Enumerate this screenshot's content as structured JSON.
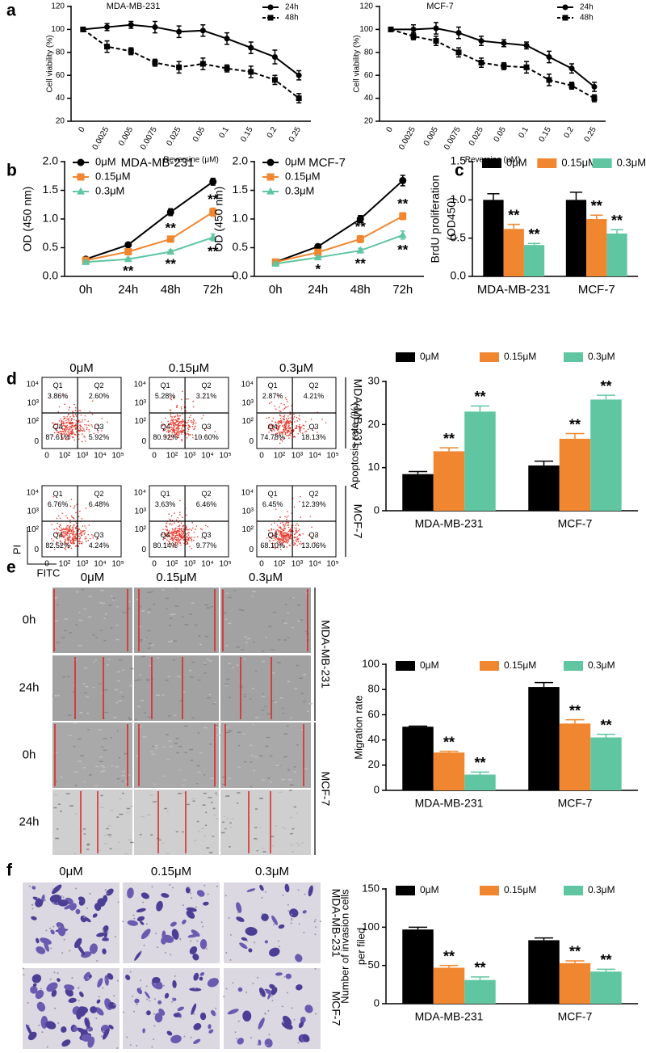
{
  "chart_data": [
    {
      "type": "line",
      "title": "MDA-MB-231",
      "x_label": "Reversine (μM)",
      "y_label": "Cell viability (%)",
      "categories": [
        "0",
        "0.0025",
        "0.005",
        "0.0075",
        "0.025",
        "0.05",
        "0.1",
        "0.15",
        "0.2",
        "0.25"
      ],
      "ylim": [
        20,
        120
      ],
      "yticks": [
        20,
        40,
        60,
        80,
        100,
        120
      ],
      "legend": "upper right",
      "series": [
        {
          "name": "24h",
          "color": "#000000",
          "line_style": "solid",
          "marker": "circle",
          "values": [
            100,
            102,
            104,
            102,
            98,
            99,
            92,
            84,
            76,
            60
          ],
          "errors": [
            0,
            3,
            3,
            5,
            5,
            5,
            5,
            5,
            6,
            4
          ]
        },
        {
          "name": "48h",
          "color": "#000000",
          "line_style": "dashed",
          "marker": "square",
          "values": [
            100,
            85,
            81,
            71,
            67,
            70,
            66,
            63,
            56,
            40
          ],
          "errors": [
            0,
            5,
            3,
            3,
            5,
            5,
            3,
            5,
            4,
            4
          ]
        }
      ]
    },
    {
      "type": "line",
      "title": "MCF-7",
      "x_label": "Reversine (μM)",
      "y_label": "Cell viability (%)",
      "categories": [
        "0",
        "0.0025",
        "0.005",
        "0.0075",
        "0.025",
        "0.05",
        "0.1",
        "0.15",
        "0.2",
        "0.25"
      ],
      "ylim": [
        20,
        120
      ],
      "yticks": [
        20,
        40,
        60,
        80,
        100,
        120
      ],
      "legend": "upper right",
      "series": [
        {
          "name": "24h",
          "color": "#000000",
          "line_style": "solid",
          "marker": "circle",
          "values": [
            100,
            100,
            101,
            97,
            90,
            88,
            86,
            76,
            66,
            50
          ],
          "errors": [
            0,
            4,
            5,
            5,
            4,
            3,
            3,
            5,
            4,
            4
          ]
        },
        {
          "name": "48h",
          "color": "#000000",
          "line_style": "dashed",
          "marker": "square",
          "values": [
            100,
            94,
            90,
            80,
            71,
            68,
            67,
            56,
            51,
            40
          ],
          "errors": [
            0,
            3,
            4,
            4,
            4,
            3,
            5,
            5,
            3,
            3
          ]
        }
      ]
    },
    {
      "type": "line",
      "title": "MDA-MB-231",
      "y_label": "OD (450 nm)",
      "categories": [
        "0h",
        "24h",
        "48h",
        "72h"
      ],
      "ylim": [
        0,
        2
      ],
      "yticks": [
        {
          "value": 0,
          "label": "0.0"
        },
        0.5,
        {
          "value": 1,
          "label": "1.0"
        },
        1.5,
        {
          "value": 2,
          "label": "2.0"
        }
      ],
      "legend": "upper left",
      "series": [
        {
          "name": "0μM",
          "color": "#000000",
          "line_style": "solid",
          "marker": "circle",
          "values": [
            0.3,
            0.55,
            1.12,
            1.65
          ],
          "errors": [
            0.02,
            0.03,
            0.06,
            0.06
          ]
        },
        {
          "name": "0.15μM",
          "color": "#f0862f",
          "line_style": "solid",
          "marker": "square",
          "values": [
            0.28,
            0.43,
            0.65,
            1.12
          ],
          "errors": [
            0.02,
            0.03,
            0.04,
            0.07
          ],
          "significance": [
            null,
            null,
            "**",
            "**"
          ]
        },
        {
          "name": "0.3μM",
          "color": "#5fc6a1",
          "line_style": "solid",
          "marker": "triangle",
          "values": [
            0.25,
            0.3,
            0.43,
            0.68
          ],
          "errors": [
            0.02,
            0.02,
            0.03,
            0.06
          ],
          "significance": [
            null,
            "**",
            "**",
            "**"
          ]
        }
      ]
    },
    {
      "type": "line",
      "title": "MCF-7",
      "y_label": "OD (450 nm)",
      "categories": [
        "0h",
        "24h",
        "48h",
        "72h"
      ],
      "ylim": [
        0,
        2
      ],
      "yticks": [
        {
          "value": 0,
          "label": "0.0"
        },
        0.5,
        {
          "value": 1,
          "label": "1.0"
        },
        1.5,
        {
          "value": 2,
          "label": "2.0"
        }
      ],
      "legend": "upper left",
      "series": [
        {
          "name": "0μM",
          "color": "#000000",
          "line_style": "solid",
          "marker": "circle",
          "values": [
            0.25,
            0.52,
            1.0,
            1.67
          ],
          "errors": [
            0.02,
            0.04,
            0.06,
            0.09
          ]
        },
        {
          "name": "0.15μM",
          "color": "#f0862f",
          "line_style": "solid",
          "marker": "square",
          "values": [
            0.25,
            0.42,
            0.65,
            1.05
          ],
          "errors": [
            0.02,
            0.03,
            0.06,
            0.06
          ],
          "significance": [
            null,
            null,
            "**",
            "**"
          ]
        },
        {
          "name": "0.3μM",
          "color": "#5fc6a1",
          "line_style": "solid",
          "marker": "triangle",
          "values": [
            0.22,
            0.33,
            0.45,
            0.72
          ],
          "errors": [
            0.02,
            0.02,
            0.04,
            0.07
          ],
          "significance": [
            null,
            "*",
            "**",
            "**"
          ]
        }
      ]
    },
    {
      "type": "bar",
      "y_label": [
        "BrdU proliferation",
        "(OD450)"
      ],
      "categories": [
        "MDA-MB-231",
        "MCF-7"
      ],
      "ylim": [
        0,
        1.5
      ],
      "yticks": [
        {
          "value": 0,
          "label": "0.0"
        },
        0.5,
        {
          "value": 1,
          "label": "1.0"
        },
        1.5
      ],
      "legend": "top",
      "series": [
        {
          "name": "0μM",
          "color": "#000000",
          "values": [
            1.0,
            1.0
          ],
          "errors": [
            0.08,
            0.1
          ]
        },
        {
          "name": "0.15μM",
          "color": "#f0862f",
          "values": [
            0.62,
            0.75
          ],
          "errors": [
            0.06,
            0.05
          ],
          "significance": [
            "**",
            "**"
          ]
        },
        {
          "name": "0.3μM",
          "color": "#5fc6a1",
          "values": [
            0.41,
            0.56
          ],
          "errors": [
            0.02,
            0.05
          ],
          "significance": [
            "**",
            "**"
          ]
        }
      ]
    },
    {
      "type": "bar",
      "y_label": "Apoptosis rate (%)",
      "categories": [
        "MDA-MB-231",
        "MCF-7"
      ],
      "ylim": [
        0,
        30
      ],
      "yticks": [
        0,
        10,
        20,
        30
      ],
      "legend": "above",
      "series": [
        {
          "name": "0μM",
          "color": "#000000",
          "values": [
            8.5,
            10.5
          ],
          "errors": [
            0.6,
            1
          ]
        },
        {
          "name": "0.15μM",
          "color": "#f0862f",
          "values": [
            13.8,
            16.7
          ],
          "errors": [
            0.8,
            1.2
          ],
          "significance": [
            "**",
            "**"
          ]
        },
        {
          "name": "0.3μM",
          "color": "#5fc6a1",
          "values": [
            23,
            25.8
          ],
          "errors": [
            1.3,
            1
          ],
          "significance": [
            "**",
            "**"
          ]
        }
      ]
    },
    {
      "type": "bar",
      "y_label": "Migration rate",
      "categories": [
        "MDA-MB-231",
        "MCF-7"
      ],
      "ylim": [
        0,
        100
      ],
      "yticks": [
        0,
        20,
        40,
        60,
        80,
        100
      ],
      "legend": "top",
      "series": [
        {
          "name": "0μM",
          "color": "#000000",
          "values": [
            50.5,
            82
          ],
          "errors": [
            0.5,
            3.5
          ]
        },
        {
          "name": "0.15μM",
          "color": "#f0862f",
          "values": [
            30,
            53
          ],
          "errors": [
            1,
            3
          ],
          "significance": [
            "**",
            "**"
          ]
        },
        {
          "name": "0.3μM",
          "color": "#5fc6a1",
          "values": [
            12.5,
            42
          ],
          "errors": [
            2,
            2.5
          ],
          "significance": [
            "**",
            "**"
          ]
        }
      ]
    },
    {
      "type": "bar",
      "y_label": [
        "Number of invasion cells",
        "per filed"
      ],
      "categories": [
        "MDA-MB-231",
        "MCF-7"
      ],
      "ylim": [
        0,
        150
      ],
      "yticks": [
        0,
        50,
        100,
        150
      ],
      "legend": "top",
      "series": [
        {
          "name": "0μM",
          "color": "#000000",
          "values": [
            97,
            83
          ],
          "errors": [
            3,
            3
          ]
        },
        {
          "name": "0.15μM",
          "color": "#f0862f",
          "values": [
            47,
            53
          ],
          "errors": [
            3,
            3
          ],
          "significance": [
            "**",
            "**"
          ]
        },
        {
          "name": "0.3μM",
          "color": "#5fc6a1",
          "values": [
            31,
            42
          ],
          "errors": [
            4,
            3
          ],
          "significance": [
            "**",
            "**"
          ]
        }
      ]
    }
  ],
  "figure": {
    "panel_letters": [
      "a",
      "b",
      "c",
      "d",
      "e",
      "f"
    ],
    "flow": {
      "columns": [
        "0μM",
        "0.15μM",
        "0.3μM"
      ],
      "rows": [
        "MDA-MB-231",
        "MCF-7"
      ],
      "quadrant_labels": [
        "Q1",
        "Q2",
        "Q4",
        "Q3"
      ],
      "y_ticks": [
        "10⁴",
        "10³",
        "10²",
        "0"
      ],
      "x_ticks": [
        "0",
        "10²",
        "10³",
        "10⁴",
        "10⁵"
      ],
      "y_label": "PI",
      "x_label": "FITC",
      "plots": [
        [
          [
            "3.86%",
            "2.60%",
            "87.61%",
            "5.92%"
          ],
          [
            "5.28%",
            "3.21%",
            "80.92%",
            "10.60%"
          ],
          [
            "2.87%",
            "4.21%",
            "74.78%",
            "18.13%"
          ]
        ],
        [
          [
            "6.76%",
            "6.48%",
            "82.52%",
            "4.24%"
          ],
          [
            "3.63%",
            "6.46%",
            "80.14%",
            "9.77%"
          ],
          [
            "6.45%",
            "12.39%",
            "68.10%",
            "13.06%"
          ]
        ]
      ]
    },
    "wound": {
      "columns": [
        "0μM",
        "0.15μM",
        "0.3μM"
      ],
      "rows": [
        "0h",
        "24h",
        "0h",
        "24h"
      ],
      "groups": [
        "MDA-MB-231",
        "MCF-7"
      ]
    },
    "invasion": {
      "columns": [
        "0μM",
        "0.15μM",
        "0.3μM"
      ],
      "groups": [
        "MDA-MB-231",
        "MCF-7"
      ]
    }
  }
}
